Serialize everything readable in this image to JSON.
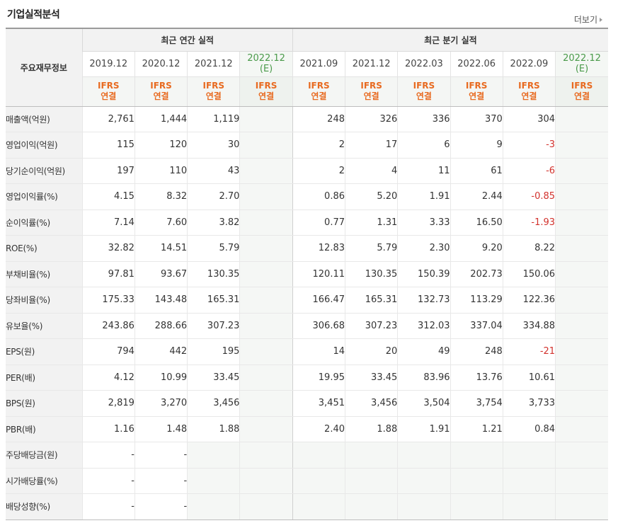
{
  "title": "기업실적분석",
  "more_label": "더보기",
  "header": {
    "row_header": "주요재무정보",
    "annual_group": "최근 연간 실적",
    "quarter_group": "최근 분기 실적",
    "annual_periods": [
      {
        "date": "2019.12",
        "sub": ""
      },
      {
        "date": "2020.12",
        "sub": ""
      },
      {
        "date": "2021.12",
        "sub": ""
      },
      {
        "date": "2022.12",
        "sub": "(E)"
      }
    ],
    "quarter_periods": [
      {
        "date": "2021.09",
        "sub": ""
      },
      {
        "date": "2021.12",
        "sub": ""
      },
      {
        "date": "2022.03",
        "sub": ""
      },
      {
        "date": "2022.06",
        "sub": ""
      },
      {
        "date": "2022.09",
        "sub": ""
      },
      {
        "date": "2022.12",
        "sub": "(E)"
      }
    ],
    "ifrs_line1": "IFRS",
    "ifrs_line2": "연결"
  },
  "rows": [
    {
      "label": "매출액(억원)",
      "annual": [
        "2,761",
        "1,444",
        "1,119",
        ""
      ],
      "quarter": [
        "248",
        "326",
        "336",
        "370",
        "304",
        ""
      ]
    },
    {
      "label": "영업이익(억원)",
      "annual": [
        "115",
        "120",
        "30",
        ""
      ],
      "quarter": [
        "2",
        "17",
        "6",
        "9",
        "-3",
        ""
      ]
    },
    {
      "label": "당기순이익(억원)",
      "annual": [
        "197",
        "110",
        "43",
        ""
      ],
      "quarter": [
        "2",
        "4",
        "11",
        "61",
        "-6",
        ""
      ]
    },
    {
      "label": "영업이익률(%)",
      "annual": [
        "4.15",
        "8.32",
        "2.70",
        ""
      ],
      "quarter": [
        "0.86",
        "5.20",
        "1.91",
        "2.44",
        "-0.85",
        ""
      ]
    },
    {
      "label": "순이익률(%)",
      "annual": [
        "7.14",
        "7.60",
        "3.82",
        ""
      ],
      "quarter": [
        "0.77",
        "1.31",
        "3.33",
        "16.50",
        "-1.93",
        ""
      ]
    },
    {
      "label": "ROE(%)",
      "annual": [
        "32.82",
        "14.51",
        "5.79",
        ""
      ],
      "quarter": [
        "12.83",
        "5.79",
        "2.30",
        "9.20",
        "8.22",
        ""
      ]
    },
    {
      "label": "부채비율(%)",
      "annual": [
        "97.81",
        "93.67",
        "130.35",
        ""
      ],
      "quarter": [
        "120.11",
        "130.35",
        "150.39",
        "202.73",
        "150.06",
        ""
      ]
    },
    {
      "label": "당좌비율(%)",
      "annual": [
        "175.33",
        "143.48",
        "165.31",
        ""
      ],
      "quarter": [
        "166.47",
        "165.31",
        "132.73",
        "113.29",
        "122.36",
        ""
      ]
    },
    {
      "label": "유보율(%)",
      "annual": [
        "243.86",
        "288.66",
        "307.23",
        ""
      ],
      "quarter": [
        "306.68",
        "307.23",
        "312.03",
        "337.04",
        "334.88",
        ""
      ]
    },
    {
      "label": "EPS(원)",
      "annual": [
        "794",
        "442",
        "195",
        ""
      ],
      "quarter": [
        "14",
        "20",
        "49",
        "248",
        "-21",
        ""
      ]
    },
    {
      "label": "PER(배)",
      "annual": [
        "4.12",
        "10.99",
        "33.45",
        ""
      ],
      "quarter": [
        "19.95",
        "33.45",
        "83.96",
        "13.76",
        "10.61",
        ""
      ]
    },
    {
      "label": "BPS(원)",
      "annual": [
        "2,819",
        "3,270",
        "3,456",
        ""
      ],
      "quarter": [
        "3,451",
        "3,456",
        "3,504",
        "3,754",
        "3,733",
        ""
      ]
    },
    {
      "label": "PBR(배)",
      "annual": [
        "1.16",
        "1.48",
        "1.88",
        ""
      ],
      "quarter": [
        "2.40",
        "1.88",
        "1.91",
        "1.21",
        "0.84",
        ""
      ]
    },
    {
      "label": "주당배당금(원)",
      "annual": [
        "-",
        "-",
        "",
        ""
      ],
      "quarter": [
        "",
        "",
        "",
        "",
        "",
        ""
      ]
    },
    {
      "label": "시가배당률(%)",
      "annual": [
        "-",
        "-",
        "",
        ""
      ],
      "quarter": [
        "",
        "",
        "",
        "",
        "",
        ""
      ]
    },
    {
      "label": "배당성향(%)",
      "annual": [
        "-",
        "-",
        "",
        ""
      ],
      "quarter": [
        "",
        "",
        "",
        "",
        "",
        ""
      ]
    }
  ],
  "colors": {
    "negative": "#d2322d",
    "ifrs": "#e86a20",
    "estimate": "#4a9a4a"
  }
}
